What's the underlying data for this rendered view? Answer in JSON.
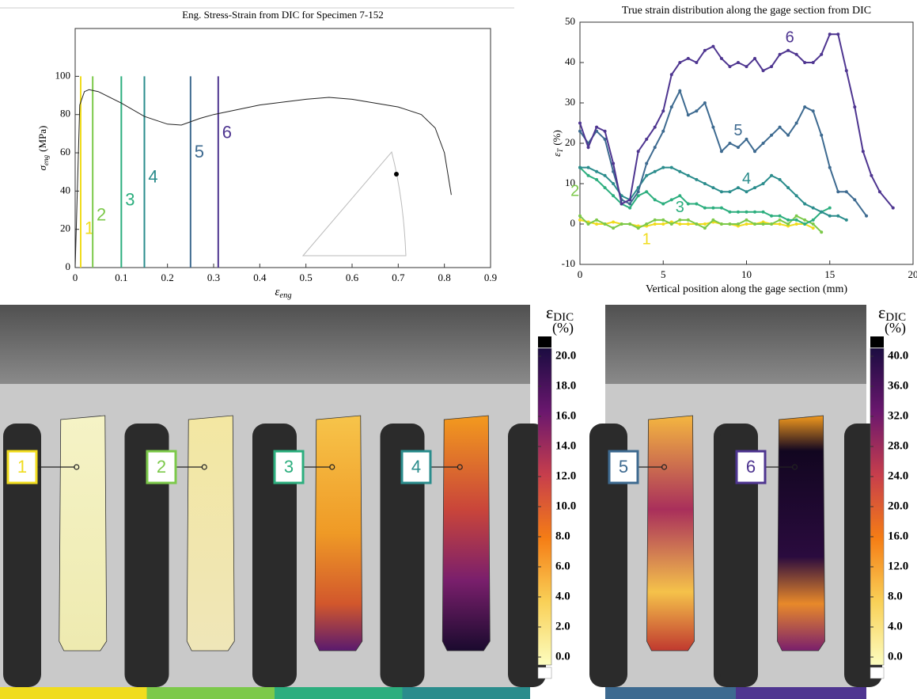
{
  "chart_data": [
    {
      "type": "line",
      "title": "Eng. Stress-Strain from DIC for Specimen 7-152",
      "xlabel": {
        "symbol": "ε",
        "subscript": "eng"
      },
      "ylabel": {
        "symbol": "σ",
        "subscript": "eng",
        "unit": "(MPa)"
      },
      "xlim": [
        0,
        0.9
      ],
      "xticks": [
        0,
        0.1,
        0.2,
        0.3,
        0.4,
        0.5,
        0.6,
        0.7,
        0.8,
        0.9
      ],
      "ylim": [
        0,
        125
      ],
      "yticks": [
        0,
        20,
        40,
        60,
        80,
        100
      ],
      "series": [
        {
          "color": "#222222",
          "x": [
            0,
            0.01,
            0.02,
            0.03,
            0.05,
            0.1,
            0.15,
            0.2,
            0.23,
            0.27,
            0.3,
            0.4,
            0.5,
            0.55,
            0.6,
            0.65,
            0.7,
            0.75,
            0.78,
            0.8,
            0.815
          ],
          "values": [
            0,
            85,
            92,
            93,
            92,
            86,
            79,
            75,
            74.5,
            78,
            80,
            85,
            88,
            89,
            88,
            86,
            84,
            80,
            73,
            60,
            38
          ]
        }
      ],
      "vline_top": 100,
      "vlines": [
        {
          "name": "1",
          "x": 0.012,
          "color": "#f0dc1e"
        },
        {
          "name": "2",
          "x": 0.038,
          "color": "#7cc94a"
        },
        {
          "name": "3",
          "x": 0.1,
          "color": "#2cae7e"
        },
        {
          "name": "4",
          "x": 0.15,
          "color": "#2a8c8c"
        },
        {
          "name": "5",
          "x": 0.25,
          "color": "#3d6a90"
        },
        {
          "name": "6",
          "x": 0.31,
          "color": "#4e3590"
        }
      ]
    },
    {
      "type": "line",
      "title": "True strain distribution along the gage section from DIC",
      "xlabel": "Vertical position along the gage section (mm)",
      "ylabel": {
        "symbol": "ε",
        "subscript": "T",
        "unit": "(%)"
      },
      "xlim": [
        0,
        20
      ],
      "xticks": [
        0,
        5,
        10,
        15,
        20
      ],
      "ylim": [
        -10,
        50
      ],
      "yticks": [
        -10,
        0,
        10,
        20,
        30,
        40,
        50
      ],
      "series": [
        {
          "name": "1",
          "color": "#f0dc1e",
          "x": [
            0,
            0.5,
            1,
            1.5,
            2,
            2.5,
            3,
            3.5,
            4,
            4.5,
            5,
            5.5,
            6,
            6.5,
            7,
            7.5,
            8,
            8.5,
            9,
            9.5,
            10,
            10.5,
            11,
            11.5,
            12,
            12.5,
            13,
            13.5,
            14
          ],
          "values": [
            1,
            0.5,
            0,
            0,
            0.5,
            0,
            0,
            -0.5,
            -0.5,
            0,
            0,
            0.5,
            0,
            0,
            0,
            0,
            0.5,
            0,
            0,
            -0.5,
            0,
            0,
            0.5,
            0,
            0,
            -0.5,
            0,
            0,
            -1
          ]
        },
        {
          "name": "2",
          "color": "#7cc94a",
          "x": [
            0,
            0.5,
            1,
            1.5,
            2,
            2.5,
            3,
            3.5,
            4,
            4.5,
            5,
            5.5,
            6,
            6.5,
            7,
            7.5,
            8,
            8.5,
            9,
            9.5,
            10,
            10.5,
            11,
            11.5,
            12,
            12.5,
            13,
            13.5,
            14,
            14.5
          ],
          "values": [
            2,
            0,
            1,
            0,
            -1,
            0,
            0,
            -1,
            0,
            1,
            1,
            0,
            1,
            1,
            0,
            -1,
            1,
            0,
            0,
            0,
            1,
            0,
            0,
            0,
            1,
            0,
            2,
            1,
            0,
            -2
          ]
        },
        {
          "name": "3",
          "color": "#2cae7e",
          "x": [
            0,
            0.5,
            1,
            1.5,
            2,
            2.5,
            3,
            3.5,
            4,
            4.5,
            5,
            5.5,
            6,
            6.5,
            7,
            7.5,
            8,
            8.5,
            9,
            9.5,
            10,
            10.5,
            11,
            11.5,
            12,
            12.5,
            13,
            13.5,
            14,
            14.5,
            15
          ],
          "values": [
            14,
            12,
            11,
            9,
            7,
            5,
            4,
            7,
            8,
            6,
            5,
            6,
            7,
            5,
            5,
            4,
            4,
            4,
            3,
            3,
            3,
            3,
            3,
            2,
            2,
            1,
            1,
            0,
            1,
            3,
            4
          ]
        },
        {
          "name": "4",
          "color": "#2a8c8c",
          "x": [
            0,
            0.5,
            1,
            1.5,
            2,
            2.5,
            3,
            3.5,
            4,
            4.5,
            5,
            5.5,
            6,
            6.5,
            7,
            7.5,
            8,
            8.5,
            9,
            9.5,
            10,
            10.5,
            11,
            11.5,
            12,
            12.5,
            13,
            13.5,
            14,
            14.5,
            15,
            15.5,
            16
          ],
          "values": [
            14,
            14,
            13,
            12,
            10,
            7,
            6,
            9,
            12,
            13,
            14,
            14,
            13,
            12,
            11,
            10,
            9,
            8,
            8,
            9,
            8,
            9,
            10,
            12,
            11,
            9,
            7,
            5,
            4,
            3,
            2,
            2,
            1
          ]
        },
        {
          "name": "5",
          "color": "#3d6a90",
          "x": [
            0,
            0.5,
            1,
            1.5,
            2,
            2.5,
            3,
            3.5,
            4,
            4.5,
            5,
            5.5,
            6,
            6.5,
            7,
            7.5,
            8,
            8.5,
            9,
            9.5,
            10,
            10.5,
            11,
            11.5,
            12,
            12.5,
            13,
            13.5,
            14,
            14.5,
            15,
            15.5,
            16,
            16.5,
            17.2
          ],
          "values": [
            23,
            20,
            23,
            21,
            13,
            6,
            5,
            8,
            15,
            19,
            23,
            29,
            33,
            27,
            28,
            30,
            24,
            18,
            20,
            19,
            21,
            18,
            20,
            22,
            24,
            22,
            25,
            29,
            28,
            22,
            14,
            8,
            8,
            6,
            2
          ]
        },
        {
          "name": "6",
          "color": "#4e3590",
          "x": [
            0,
            0.5,
            1,
            1.5,
            2,
            2.5,
            3,
            3.5,
            4,
            4.5,
            5,
            5.5,
            6,
            6.5,
            7,
            7.5,
            8,
            8.5,
            9,
            9.5,
            10,
            10.5,
            11,
            11.5,
            12,
            12.5,
            13,
            13.5,
            14,
            14.5,
            15,
            15.5,
            16,
            16.5,
            17,
            17.5,
            18,
            18.8
          ],
          "values": [
            25,
            19,
            24,
            23,
            15,
            5,
            6,
            18,
            21,
            24,
            28,
            37,
            40,
            41,
            40,
            43,
            44,
            41,
            39,
            40,
            39,
            41,
            38,
            39,
            42,
            43,
            42,
            40,
            40,
            42,
            47,
            47,
            38,
            29,
            18,
            12,
            8,
            4
          ]
        }
      ]
    }
  ],
  "panels": [
    {
      "specimens": [
        {
          "label": "1",
          "color": "#f0dc1e"
        },
        {
          "label": "2",
          "color": "#7cc94a"
        },
        {
          "label": "3",
          "color": "#2cae7e"
        },
        {
          "label": "4",
          "color": "#2a8c8c"
        }
      ],
      "colorbar": {
        "symbol": "ε",
        "subscript": "DIC",
        "unit": "(%)",
        "ticks": [
          {
            "value": 0,
            "label": "0.0"
          },
          {
            "value": 2,
            "label": "2.0"
          },
          {
            "value": 4,
            "label": "4.0"
          },
          {
            "value": 6,
            "label": "6.0"
          },
          {
            "value": 8,
            "label": "8.0"
          },
          {
            "value": 10,
            "label": "10.0"
          },
          {
            "value": 12,
            "label": "12.0"
          },
          {
            "value": 14,
            "label": "14.0"
          },
          {
            "value": 16,
            "label": "16.0"
          },
          {
            "value": 18,
            "label": "18.0"
          },
          {
            "value": 20,
            "label": "20.0"
          }
        ]
      }
    },
    {
      "specimens": [
        {
          "label": "5",
          "color": "#3d6a90"
        },
        {
          "label": "6",
          "color": "#4e3590"
        }
      ],
      "colorbar": {
        "symbol": "ε",
        "subscript": "DIC",
        "unit": "(%)",
        "ticks": [
          {
            "value": 0,
            "label": "0.0"
          },
          {
            "value": 4,
            "label": "4.0"
          },
          {
            "value": 8,
            "label": "8.0"
          },
          {
            "value": 12,
            "label": "12.0"
          },
          {
            "value": 16,
            "label": "16.0"
          },
          {
            "value": 20,
            "label": "20.0"
          },
          {
            "value": 24,
            "label": "24.0"
          },
          {
            "value": 28,
            "label": "28.0"
          },
          {
            "value": 32,
            "label": "32.0"
          },
          {
            "value": 36,
            "label": "36.0"
          },
          {
            "value": 40,
            "label": "40.0"
          }
        ]
      }
    }
  ]
}
